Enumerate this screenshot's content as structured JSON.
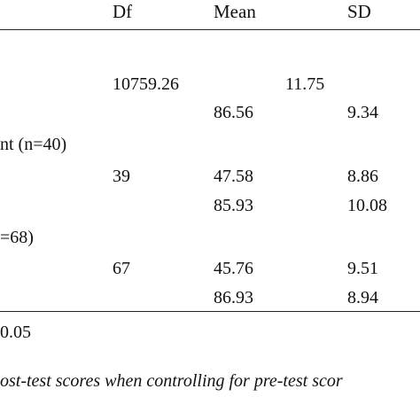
{
  "table": {
    "headers": {
      "df": "Df",
      "mean": "Mean",
      "sd": "SD"
    },
    "rows": [
      {
        "label": "",
        "df": "10759.26",
        "mean": "",
        "sd": "",
        "extra": "11.75"
      },
      {
        "label": "",
        "df": "",
        "mean": "86.56",
        "sd": "9.34"
      },
      {
        "label": "nt (n=40)"
      },
      {
        "label": "",
        "df": "39",
        "mean": "47.58",
        "sd": "8.86"
      },
      {
        "label": "",
        "df": "",
        "mean": "85.93",
        "sd": "10.08"
      },
      {
        "label": "=68)"
      },
      {
        "label": "",
        "df": "67",
        "mean": "45.76",
        "sd": "9.51"
      },
      {
        "label": "",
        "df": "",
        "mean": "86.93",
        "sd": "8.94"
      }
    ]
  },
  "note": "0.05",
  "caption": "ost-test scores when controlling for pre-test scor"
}
